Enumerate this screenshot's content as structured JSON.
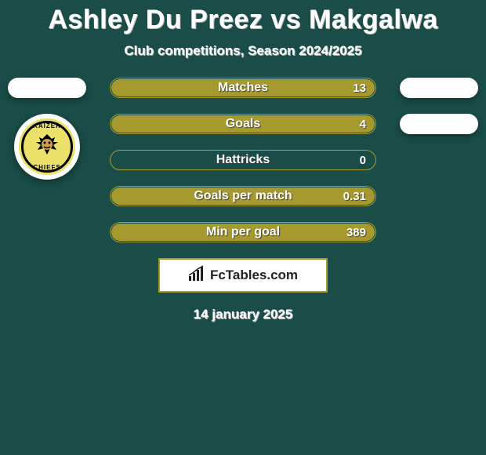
{
  "background_color": "#1a4d47",
  "accent_color": "#a69a2e",
  "text_color": "#ffffff",
  "title": "Ashley Du Preez vs Makgalwa",
  "title_fontsize": 34,
  "subtitle": "Club competitions, Season 2024/2025",
  "subtitle_fontsize": 17,
  "date": "14 january 2025",
  "branding_text": "FcTables.com",
  "left": {
    "club_top": "KAIZER",
    "club_bottom": "CHIEFS",
    "badge_bg": "#eae06a"
  },
  "stats": [
    {
      "label": "Matches",
      "value": "13",
      "fill": 1.0
    },
    {
      "label": "Goals",
      "value": "4",
      "fill": 1.0
    },
    {
      "label": "Hattricks",
      "value": "0",
      "fill": 0.0
    },
    {
      "label": "Goals per match",
      "value": "0.31",
      "fill": 1.0
    },
    {
      "label": "Min per goal",
      "value": "389",
      "fill": 1.0
    }
  ]
}
